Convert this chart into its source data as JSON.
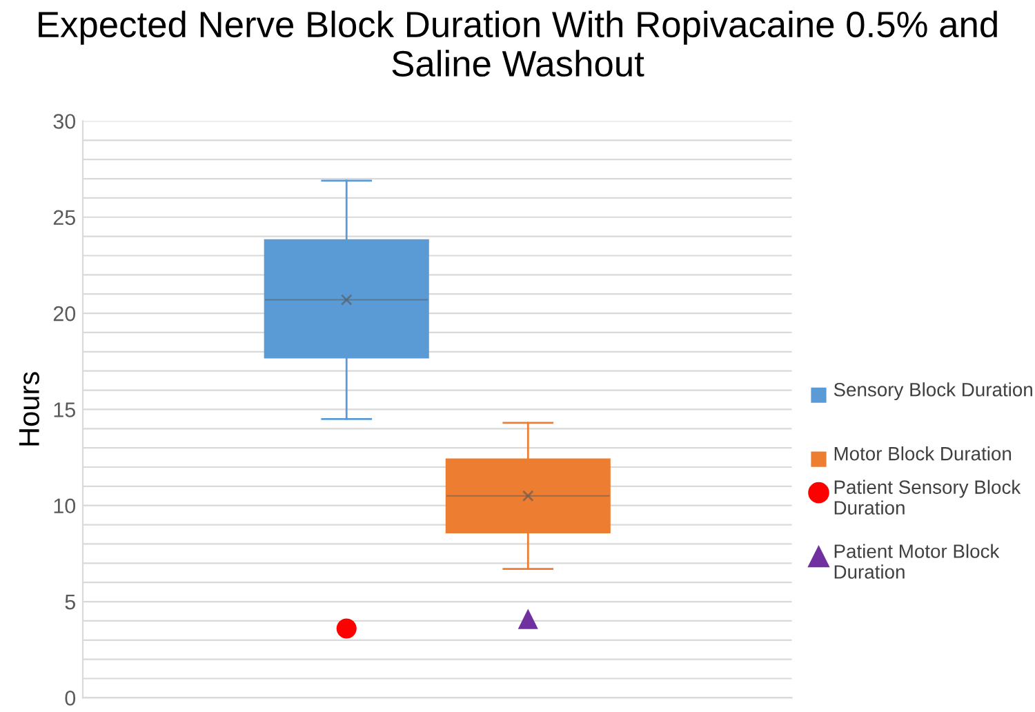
{
  "chart_data": {
    "type": "box",
    "title": "Expected Nerve Block Duration With Ropivacaine 0.5% and Saline Washout",
    "ylabel": "Hours",
    "categories": [
      null
    ],
    "series": [
      {
        "name": "Sensory Block Duration",
        "type": "box",
        "color": "#5b9bd5",
        "boxes": [
          {
            "low": 14.5,
            "q1": 17.7,
            "median": 20.7,
            "q3": 23.8,
            "high": 26.9,
            "mean": 20.7
          }
        ]
      },
      {
        "name": "Motor Block Duration",
        "type": "box",
        "color": "#ed7d31",
        "boxes": [
          {
            "low": 6.7,
            "q1": 8.6,
            "median": 10.5,
            "q3": 12.4,
            "high": 14.3,
            "mean": 10.5
          }
        ]
      },
      {
        "name": "Patient Sensory Block Duration",
        "type": "scatter",
        "color": "#ff0000",
        "marker": "circle",
        "values": [
          3.6
        ]
      },
      {
        "name": "Patient Motor Block Duration",
        "type": "scatter",
        "color": "#7030a0",
        "marker": "triangle",
        "values": [
          4.1
        ]
      }
    ],
    "ylim": [
      0,
      30
    ],
    "yticks": [
      0,
      {
        "value": 1,
        "label": null
      },
      {
        "value": 2,
        "label": null
      },
      {
        "value": 3,
        "label": null
      },
      {
        "value": 4,
        "label": null
      },
      5,
      {
        "value": 6,
        "label": null
      },
      {
        "value": 7,
        "label": null
      },
      {
        "value": 8,
        "label": null
      },
      {
        "value": 9,
        "label": null
      },
      10,
      {
        "value": 11,
        "label": null
      },
      {
        "value": 12,
        "label": null
      },
      {
        "value": 13,
        "label": null
      },
      {
        "value": 14,
        "label": null
      },
      15,
      {
        "value": 16,
        "label": null
      },
      {
        "value": 17,
        "label": null
      },
      {
        "value": 18,
        "label": null
      },
      {
        "value": 19,
        "label": null
      },
      20,
      {
        "value": 21,
        "label": null
      },
      {
        "value": 22,
        "label": null
      },
      {
        "value": 23,
        "label": null
      },
      {
        "value": 24,
        "label": null
      },
      25,
      {
        "value": 26,
        "label": null
      },
      {
        "value": 27,
        "label": null
      },
      {
        "value": 28,
        "label": null
      },
      {
        "value": 29,
        "label": null
      },
      30
    ],
    "grid": "y",
    "legend": "right"
  }
}
